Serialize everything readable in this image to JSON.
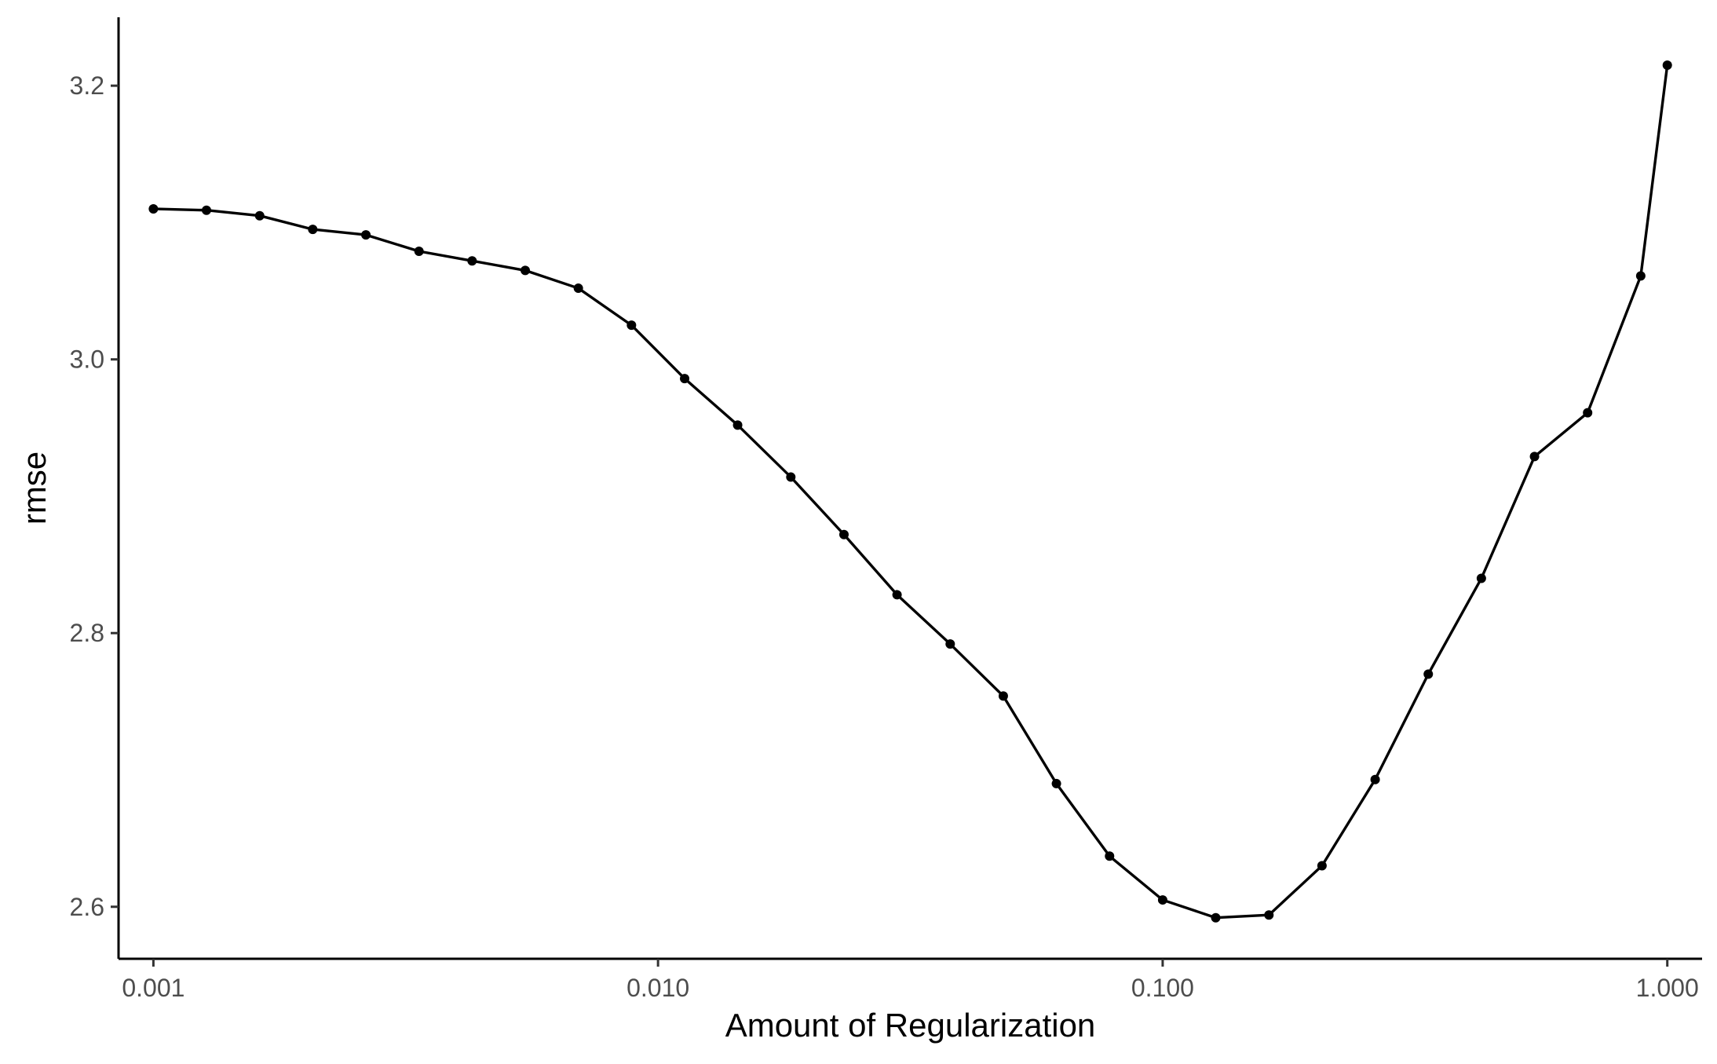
{
  "chart_data": {
    "type": "line",
    "title": "",
    "xlabel": "Amount of Regularization",
    "ylabel": "rmse",
    "x_scale": "log10",
    "xlim": [
      0.000853,
      1.172
    ],
    "ylim": [
      2.562,
      3.25
    ],
    "x_ticks": [
      0.001,
      0.01,
      0.1,
      1.0
    ],
    "x_tick_labels": [
      "0.001",
      "0.010",
      "0.100",
      "1.000"
    ],
    "y_ticks": [
      2.6,
      2.8,
      3.0,
      3.2
    ],
    "y_tick_labels": [
      "2.6",
      "2.8",
      "3.0",
      "3.2"
    ],
    "grid": false,
    "legend": "none",
    "line_color": "#000000",
    "series": [
      {
        "x": [
          0.001,
          0.001274,
          0.001624,
          0.002069,
          0.002637,
          0.00336,
          0.004281,
          0.005456,
          0.006952,
          0.008859,
          0.01129,
          0.01438,
          0.01833,
          0.02336,
          0.02976,
          0.03793,
          0.04833,
          0.06158,
          0.07848,
          0.1,
          0.1274,
          0.1624,
          0.2069,
          0.2637,
          0.336,
          0.4281,
          0.5456,
          0.6952,
          0.8859,
          1.0
        ],
        "y": [
          3.11,
          3.109,
          3.105,
          3.095,
          3.091,
          3.079,
          3.072,
          3.065,
          3.052,
          3.025,
          2.986,
          2.952,
          2.914,
          2.872,
          2.828,
          2.792,
          2.754,
          2.69,
          2.637,
          2.605,
          2.592,
          2.594,
          2.63,
          2.693,
          2.77,
          2.84,
          2.929,
          2.961,
          3.061,
          3.215
        ]
      }
    ]
  }
}
